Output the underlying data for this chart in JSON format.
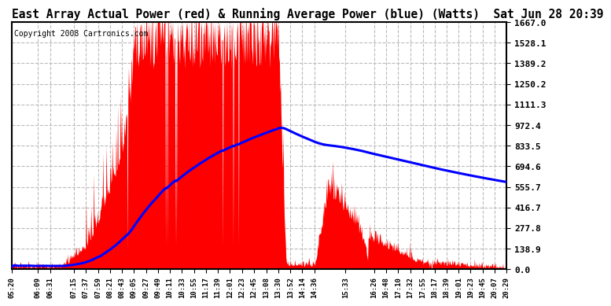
{
  "title": "East Array Actual Power (red) & Running Average Power (blue) (Watts)  Sat Jun 28 20:39",
  "copyright": "Copyright 2008 Cartronics.com",
  "yticks": [
    0.0,
    138.9,
    277.8,
    416.7,
    555.7,
    694.6,
    833.5,
    972.4,
    1111.3,
    1250.2,
    1389.2,
    1528.1,
    1667.0
  ],
  "ymax": 1667.0,
  "ymin": 0.0,
  "actual_color": "#FF0000",
  "avg_color": "#0000FF",
  "bg_color": "#FFFFFF",
  "grid_color": "#BBBBBB",
  "title_fontsize": 10.5,
  "copyright_fontsize": 7,
  "x_label_fontsize": 6.5,
  "y_label_fontsize": 8,
  "xtick_labels": [
    "05:20",
    "06:09",
    "06:31",
    "07:15",
    "07:37",
    "07:59",
    "08:21",
    "08:43",
    "09:05",
    "09:27",
    "09:49",
    "10:11",
    "10:33",
    "10:55",
    "11:17",
    "11:39",
    "12:01",
    "12:23",
    "12:45",
    "13:08",
    "13:30",
    "13:52",
    "14:14",
    "14:36",
    "15:33",
    "16:26",
    "16:48",
    "17:10",
    "17:32",
    "17:55",
    "18:17",
    "18:39",
    "19:01",
    "19:23",
    "19:45",
    "20:07",
    "20:29"
  ]
}
